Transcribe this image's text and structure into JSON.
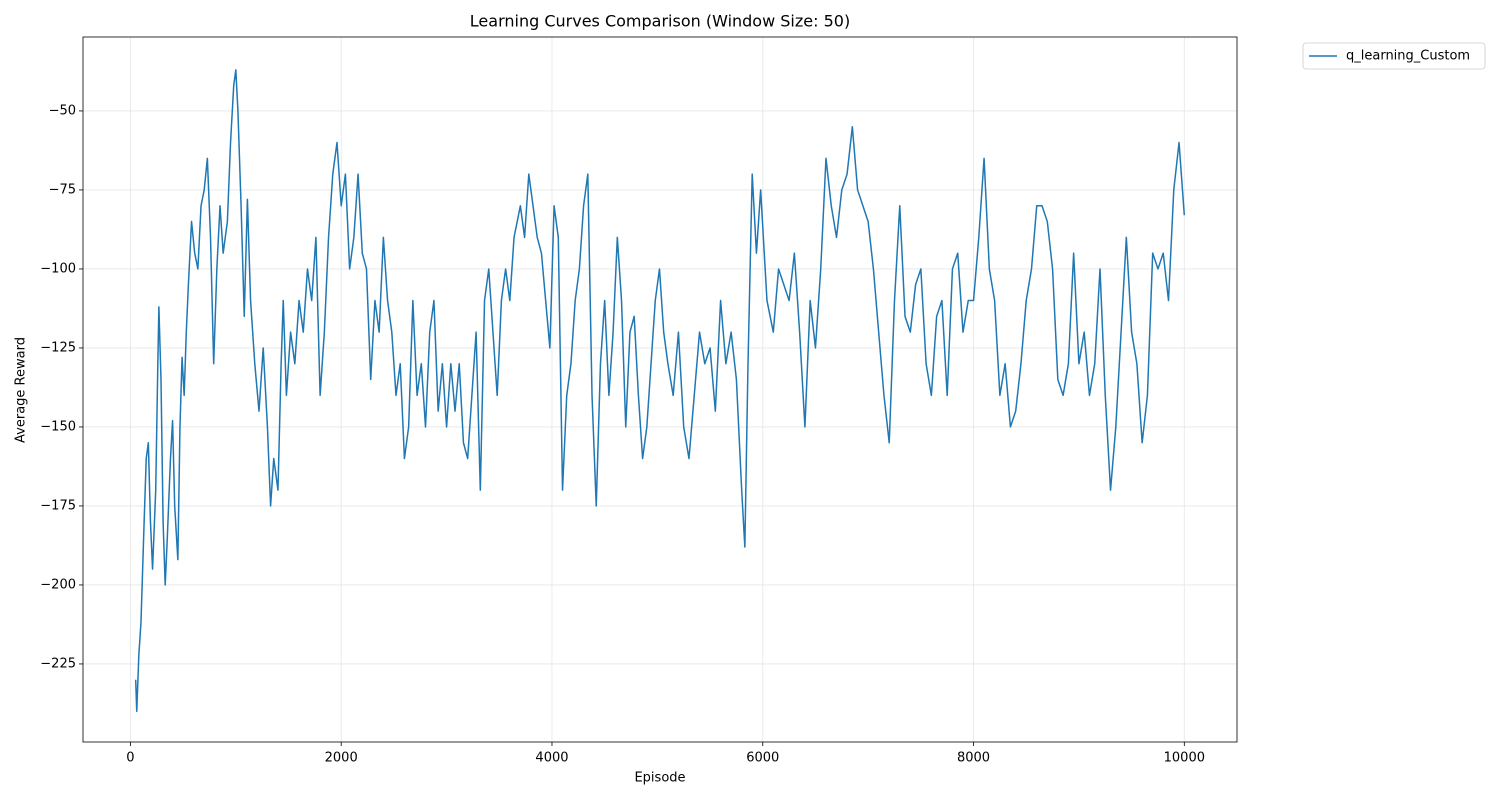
{
  "chart_data": {
    "type": "line",
    "title": "Learning Curves Comparison (Window Size: 50)",
    "x_label": "Episode",
    "y_label": "Average Reward",
    "xlim": [
      -450,
      10500
    ],
    "ylim": [
      -249.7,
      -26.6
    ],
    "xticks": [
      0,
      2000,
      4000,
      6000,
      8000,
      10000
    ],
    "yticks": [
      {
        "value": -225,
        "label": "−225"
      },
      {
        "value": -200,
        "label": "−200"
      },
      {
        "value": -175,
        "label": "−175"
      },
      {
        "value": -150,
        "label": "−150"
      },
      {
        "value": -125,
        "label": "−125"
      },
      {
        "value": -100,
        "label": "−100"
      },
      {
        "value": -75,
        "label": "−75"
      },
      {
        "value": -50,
        "label": "−50"
      }
    ],
    "grid": true,
    "legend": "outside-upper-right",
    "x": [
      50,
      60,
      80,
      100,
      130,
      150,
      170,
      190,
      210,
      240,
      260,
      270,
      290,
      310,
      330,
      350,
      380,
      400,
      420,
      450,
      470,
      490,
      510,
      530,
      550,
      580,
      610,
      640,
      670,
      700,
      730,
      760,
      790,
      820,
      850,
      880,
      920,
      950,
      980,
      1000,
      1020,
      1050,
      1080,
      1110,
      1140,
      1180,
      1220,
      1260,
      1300,
      1330,
      1360,
      1400,
      1430,
      1450,
      1480,
      1520,
      1560,
      1600,
      1640,
      1680,
      1720,
      1760,
      1800,
      1840,
      1880,
      1920,
      1960,
      2000,
      2040,
      2080,
      2120,
      2160,
      2200,
      2240,
      2280,
      2320,
      2360,
      2400,
      2440,
      2480,
      2520,
      2560,
      2600,
      2640,
      2680,
      2720,
      2760,
      2800,
      2840,
      2880,
      2920,
      2960,
      3000,
      3040,
      3080,
      3120,
      3160,
      3200,
      3240,
      3280,
      3320,
      3360,
      3400,
      3440,
      3480,
      3520,
      3560,
      3600,
      3640,
      3700,
      3740,
      3780,
      3820,
      3860,
      3900,
      3940,
      3980,
      4020,
      4060,
      4100,
      4140,
      4180,
      4220,
      4260,
      4300,
      4340,
      4380,
      4420,
      4460,
      4500,
      4540,
      4580,
      4620,
      4660,
      4700,
      4740,
      4780,
      4820,
      4860,
      4900,
      4940,
      4980,
      5020,
      5060,
      5100,
      5150,
      5200,
      5250,
      5300,
      5350,
      5400,
      5450,
      5500,
      5550,
      5600,
      5650,
      5700,
      5750,
      5800,
      5830,
      5860,
      5900,
      5940,
      5980,
      6040,
      6100,
      6150,
      6200,
      6250,
      6300,
      6350,
      6400,
      6450,
      6500,
      6550,
      6600,
      6650,
      6700,
      6750,
      6800,
      6850,
      6900,
      6950,
      7000,
      7050,
      7100,
      7150,
      7200,
      7250,
      7300,
      7350,
      7400,
      7450,
      7500,
      7550,
      7600,
      7650,
      7700,
      7750,
      7800,
      7850,
      7900,
      7950,
      8000,
      8050,
      8100,
      8150,
      8200,
      8250,
      8300,
      8350,
      8400,
      8450,
      8500,
      8550,
      8600,
      8650,
      8700,
      8750,
      8800,
      8850,
      8900,
      8950,
      9000,
      9050,
      9100,
      9150,
      9200,
      9250,
      9300,
      9350,
      9400,
      9450,
      9500,
      9550,
      9600,
      9650,
      9700,
      9750,
      9800,
      9850,
      9900,
      9950,
      10000
    ],
    "series": [
      {
        "name": "q_learning_Custom",
        "color": "#1f77b4",
        "values": [
          -230,
          -240,
          -222,
          -212,
          -180,
          -160,
          -155,
          -180,
          -195,
          -170,
          -130,
          -112,
          -135,
          -180,
          -200,
          -185,
          -160,
          -148,
          -175,
          -192,
          -150,
          -128,
          -140,
          -120,
          -105,
          -85,
          -95,
          -100,
          -80,
          -75,
          -65,
          -90,
          -130,
          -100,
          -80,
          -95,
          -85,
          -60,
          -42,
          -37,
          -50,
          -80,
          -115,
          -78,
          -110,
          -130,
          -145,
          -125,
          -150,
          -175,
          -160,
          -170,
          -130,
          -110,
          -140,
          -120,
          -130,
          -110,
          -120,
          -100,
          -110,
          -90,
          -140,
          -120,
          -90,
          -70,
          -60,
          -80,
          -70,
          -100,
          -90,
          -70,
          -95,
          -100,
          -135,
          -110,
          -120,
          -90,
          -110,
          -120,
          -140,
          -130,
          -160,
          -150,
          -110,
          -140,
          -130,
          -150,
          -120,
          -110,
          -145,
          -130,
          -150,
          -130,
          -145,
          -130,
          -155,
          -160,
          -140,
          -120,
          -170,
          -110,
          -100,
          -120,
          -140,
          -110,
          -100,
          -110,
          -90,
          -80,
          -90,
          -70,
          -80,
          -90,
          -95,
          -110,
          -125,
          -80,
          -90,
          -170,
          -140,
          -130,
          -110,
          -100,
          -80,
          -70,
          -140,
          -175,
          -130,
          -110,
          -140,
          -120,
          -90,
          -110,
          -150,
          -120,
          -115,
          -140,
          -160,
          -150,
          -130,
          -110,
          -100,
          -120,
          -130,
          -140,
          -120,
          -150,
          -160,
          -140,
          -120,
          -130,
          -125,
          -145,
          -110,
          -130,
          -120,
          -135,
          -170,
          -188,
          -130,
          -70,
          -95,
          -75,
          -110,
          -120,
          -100,
          -105,
          -110,
          -95,
          -120,
          -150,
          -110,
          -125,
          -100,
          -65,
          -80,
          -90,
          -75,
          -70,
          -55,
          -75,
          -80,
          -85,
          -100,
          -120,
          -140,
          -155,
          -110,
          -80,
          -115,
          -120,
          -105,
          -100,
          -130,
          -140,
          -115,
          -110,
          -140,
          -100,
          -95,
          -120,
          -110,
          -110,
          -90,
          -65,
          -100,
          -110,
          -140,
          -130,
          -150,
          -145,
          -130,
          -110,
          -100,
          -80,
          -80,
          -85,
          -100,
          -135,
          -140,
          -130,
          -95,
          -130,
          -120,
          -140,
          -130,
          -100,
          -140,
          -170,
          -150,
          -120,
          -90,
          -120,
          -130,
          -155,
          -140,
          -95,
          -100,
          -95,
          -110,
          -75,
          -60,
          -83
        ]
      }
    ]
  }
}
